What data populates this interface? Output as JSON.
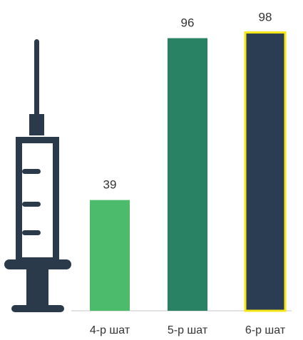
{
  "chart_data": {
    "type": "bar",
    "categories": [
      "4-р шат",
      "5-р шат",
      "6-р шат"
    ],
    "values": [
      39,
      96,
      98
    ],
    "colors": [
      "#4cbb6c",
      "#2a8264",
      "#2b3d52"
    ],
    "highlight_index": 2,
    "highlight_color": "#f5e615",
    "ylim": [
      0,
      100
    ],
    "title": "",
    "xlabel": "",
    "ylabel": "",
    "grid": false,
    "legend": "none"
  },
  "icon": {
    "name": "syringe-icon",
    "color": "#2b3a4a"
  }
}
